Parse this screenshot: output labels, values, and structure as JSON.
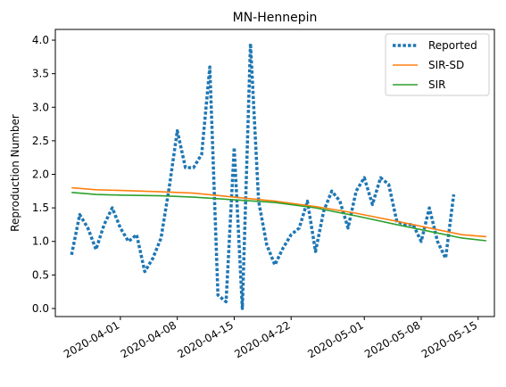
{
  "chart_data": {
    "type": "line",
    "title": "MN-Hennepin",
    "xlabel": "",
    "ylabel": "Reproduction Number",
    "x_ticks": [
      "2020-04-01",
      "2020-04-08",
      "2020-04-15",
      "2020-04-22",
      "2020-05-01",
      "2020-05-08",
      "2020-05-15"
    ],
    "y_ticks": [
      "0.0",
      "0.5",
      "1.0",
      "1.5",
      "2.0",
      "2.5",
      "3.0",
      "3.5",
      "4.0"
    ],
    "xlim": [
      "2020-03-24",
      "2020-05-17"
    ],
    "ylim": [
      -0.12,
      4.16
    ],
    "grid": false,
    "legend_position": "top-right",
    "series": [
      {
        "name": "Reported",
        "color": "#1f77b4",
        "style": "dotted",
        "points": [
          [
            "2020-03-26",
            0.8
          ],
          [
            "2020-03-27",
            1.4
          ],
          [
            "2020-03-28",
            1.2
          ],
          [
            "2020-03-29",
            0.88
          ],
          [
            "2020-03-30",
            1.25
          ],
          [
            "2020-03-31",
            1.5
          ],
          [
            "2020-04-01",
            1.2
          ],
          [
            "2020-04-02",
            1.0
          ],
          [
            "2020-04-03",
            1.1
          ],
          [
            "2020-04-04",
            0.55
          ],
          [
            "2020-04-05",
            0.75
          ],
          [
            "2020-04-06",
            1.05
          ],
          [
            "2020-04-07",
            1.8
          ],
          [
            "2020-04-08",
            2.65
          ],
          [
            "2020-04-09",
            2.1
          ],
          [
            "2020-04-10",
            2.1
          ],
          [
            "2020-04-11",
            2.3
          ],
          [
            "2020-04-12",
            3.6
          ],
          [
            "2020-04-13",
            0.2
          ],
          [
            "2020-04-14",
            0.1
          ],
          [
            "2020-04-15",
            2.4
          ],
          [
            "2020-04-16",
            0.0
          ],
          [
            "2020-04-17",
            3.95
          ],
          [
            "2020-04-18",
            1.6
          ],
          [
            "2020-04-19",
            0.95
          ],
          [
            "2020-04-20",
            0.65
          ],
          [
            "2020-04-21",
            0.9
          ],
          [
            "2020-04-22",
            1.1
          ],
          [
            "2020-04-23",
            1.2
          ],
          [
            "2020-04-24",
            1.6
          ],
          [
            "2020-04-25",
            0.85
          ],
          [
            "2020-04-26",
            1.45
          ],
          [
            "2020-04-27",
            1.75
          ],
          [
            "2020-04-28",
            1.6
          ],
          [
            "2020-04-29",
            1.2
          ],
          [
            "2020-04-30",
            1.75
          ],
          [
            "2020-05-01",
            1.95
          ],
          [
            "2020-05-02",
            1.55
          ],
          [
            "2020-05-03",
            1.95
          ],
          [
            "2020-05-04",
            1.85
          ],
          [
            "2020-05-05",
            1.3
          ],
          [
            "2020-05-06",
            1.25
          ],
          [
            "2020-05-07",
            1.25
          ],
          [
            "2020-05-08",
            1.0
          ],
          [
            "2020-05-09",
            1.5
          ],
          [
            "2020-05-10",
            1.0
          ],
          [
            "2020-05-11",
            0.75
          ],
          [
            "2020-05-12",
            1.7
          ]
        ]
      },
      {
        "name": "SIR-SD",
        "color": "#ff7f0e",
        "style": "solid",
        "points": [
          [
            "2020-03-26",
            1.8
          ],
          [
            "2020-03-29",
            1.77
          ],
          [
            "2020-04-01",
            1.76
          ],
          [
            "2020-04-06",
            1.74
          ],
          [
            "2020-04-10",
            1.72
          ],
          [
            "2020-04-15",
            1.66
          ],
          [
            "2020-04-20",
            1.6
          ],
          [
            "2020-04-25",
            1.52
          ],
          [
            "2020-04-30",
            1.42
          ],
          [
            "2020-05-05",
            1.3
          ],
          [
            "2020-05-09",
            1.2
          ],
          [
            "2020-05-13",
            1.1
          ],
          [
            "2020-05-16",
            1.07
          ]
        ]
      },
      {
        "name": "SIR",
        "color": "#2ca02c",
        "style": "solid",
        "points": [
          [
            "2020-03-26",
            1.73
          ],
          [
            "2020-03-29",
            1.7
          ],
          [
            "2020-04-01",
            1.69
          ],
          [
            "2020-04-06",
            1.68
          ],
          [
            "2020-04-10",
            1.66
          ],
          [
            "2020-04-15",
            1.62
          ],
          [
            "2020-04-20",
            1.58
          ],
          [
            "2020-04-25",
            1.5
          ],
          [
            "2020-04-30",
            1.38
          ],
          [
            "2020-05-05",
            1.25
          ],
          [
            "2020-05-09",
            1.15
          ],
          [
            "2020-05-13",
            1.05
          ],
          [
            "2020-05-16",
            1.01
          ]
        ]
      }
    ]
  }
}
